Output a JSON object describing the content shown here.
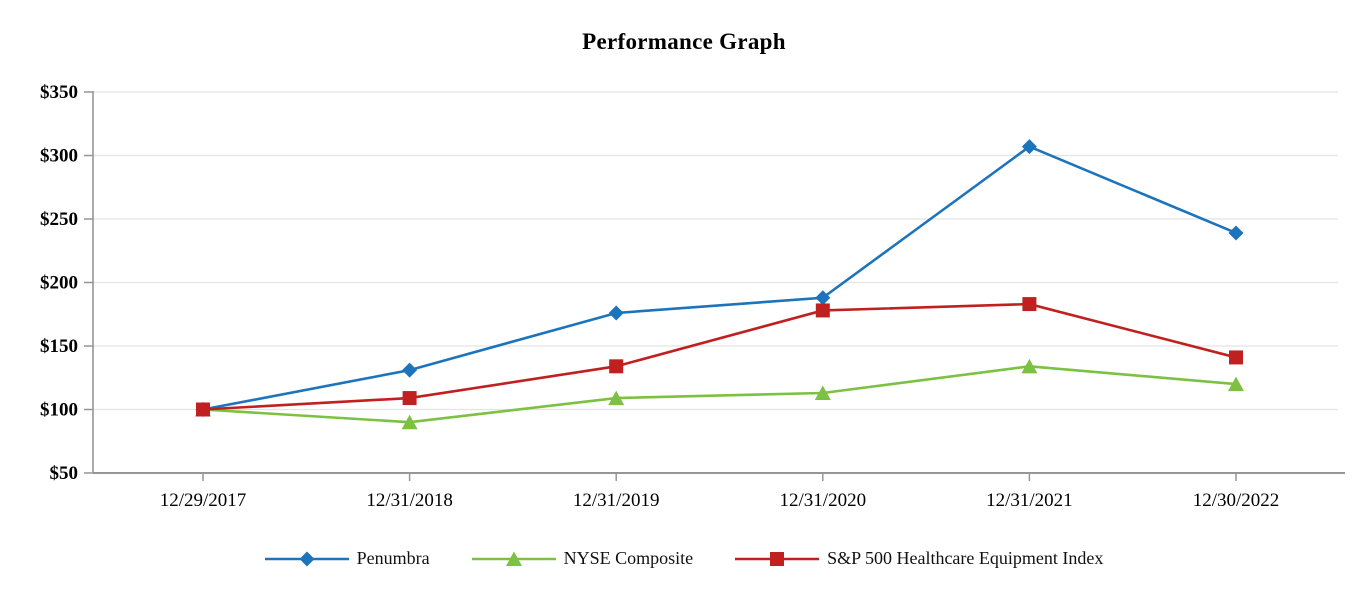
{
  "title": "Performance Graph",
  "chart_data": {
    "type": "line",
    "title": "Performance Graph",
    "categories": [
      "12/29/2017",
      "12/31/2018",
      "12/31/2019",
      "12/31/2020",
      "12/31/2021",
      "12/30/2022"
    ],
    "series": [
      {
        "name": "Penumbra",
        "marker": "diamond",
        "color": "#1B74BC",
        "values": [
          100,
          131,
          176,
          188,
          307,
          239
        ]
      },
      {
        "name": "NYSE Composite",
        "marker": "triangle",
        "color": "#7CC142",
        "values": [
          100,
          90,
          109,
          113,
          134,
          120
        ]
      },
      {
        "name": "S&P 500 Healthcare Equipment Index",
        "marker": "square",
        "color": "#C02120",
        "values": [
          100,
          109,
          134,
          178,
          183,
          141
        ]
      }
    ],
    "ylim": [
      50,
      350
    ],
    "y_tick_step": 50,
    "y_tick_labels": [
      "$50",
      "$100",
      "$150",
      "$200",
      "$250",
      "$300",
      "$350"
    ],
    "y_tick_prefix": "$",
    "grid": "horizontal-only",
    "legend_position": "bottom",
    "axis_color": "#969696",
    "grid_color": "#E4E4E4"
  }
}
